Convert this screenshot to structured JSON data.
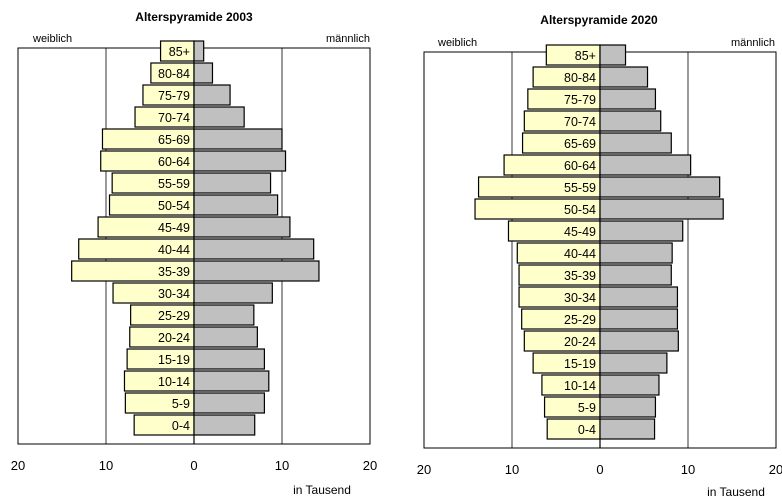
{
  "unit_note": "in Tausend",
  "colors": {
    "female": "#ffffcc",
    "male": "#c0c0c0",
    "outline": "#000000",
    "grid": "#000000"
  },
  "chart_data": [
    {
      "type": "bar",
      "title": "Alterspyramide 2003",
      "left_label": "weiblich",
      "right_label": "männlich",
      "xlabel": "in Tausend",
      "xlim": [
        -20,
        20
      ],
      "x_ticks": [
        -20,
        -10,
        0,
        10,
        20
      ],
      "x_tick_labels": [
        "20",
        "10",
        "0",
        "10",
        "20"
      ],
      "grid": true,
      "categories": [
        "0-4",
        "5-9",
        "10-14",
        "15-19",
        "20-24",
        "25-29",
        "30-34",
        "35-39",
        "40-44",
        "45-49",
        "50-54",
        "55-59",
        "60-64",
        "65-69",
        "70-74",
        "75-79",
        "80-84",
        "85+"
      ],
      "series": [
        {
          "name": "weiblich",
          "values": [
            6.8,
            7.8,
            7.9,
            7.6,
            7.3,
            7.2,
            9.2,
            13.9,
            13.1,
            10.9,
            9.6,
            9.3,
            10.6,
            10.4,
            6.7,
            5.8,
            4.9,
            3.8
          ]
        },
        {
          "name": "männlich",
          "values": [
            6.9,
            8.0,
            8.5,
            8.0,
            7.2,
            6.8,
            8.9,
            14.2,
            13.6,
            10.9,
            9.5,
            8.7,
            10.4,
            10.0,
            5.7,
            4.1,
            2.1,
            1.1
          ]
        }
      ]
    },
    {
      "type": "bar",
      "title": "Alterspyramide 2020",
      "left_label": "weiblich",
      "right_label": "männlich",
      "xlabel": "in Tausend",
      "xlim": [
        -20,
        20
      ],
      "x_ticks": [
        -20,
        -10,
        0,
        10,
        20
      ],
      "x_tick_labels": [
        "20",
        "10",
        "0",
        "10",
        "20"
      ],
      "grid": true,
      "categories": [
        "0-4",
        "5-9",
        "10-14",
        "15-19",
        "20-24",
        "25-29",
        "30-34",
        "35-39",
        "40-44",
        "45-49",
        "50-54",
        "55-59",
        "60-64",
        "65-69",
        "70-74",
        "75-79",
        "80-84",
        "85+"
      ],
      "series": [
        {
          "name": "weiblich",
          "values": [
            6.0,
            6.3,
            6.6,
            7.6,
            8.6,
            8.9,
            9.2,
            9.2,
            9.4,
            10.4,
            14.2,
            13.8,
            10.9,
            8.8,
            8.6,
            8.2,
            7.6,
            6.1
          ]
        },
        {
          "name": "männlich",
          "values": [
            6.2,
            6.3,
            6.7,
            7.6,
            8.9,
            8.8,
            8.8,
            8.1,
            8.2,
            9.4,
            14.0,
            13.6,
            10.3,
            8.1,
            6.9,
            6.3,
            5.4,
            2.9
          ]
        }
      ]
    }
  ]
}
